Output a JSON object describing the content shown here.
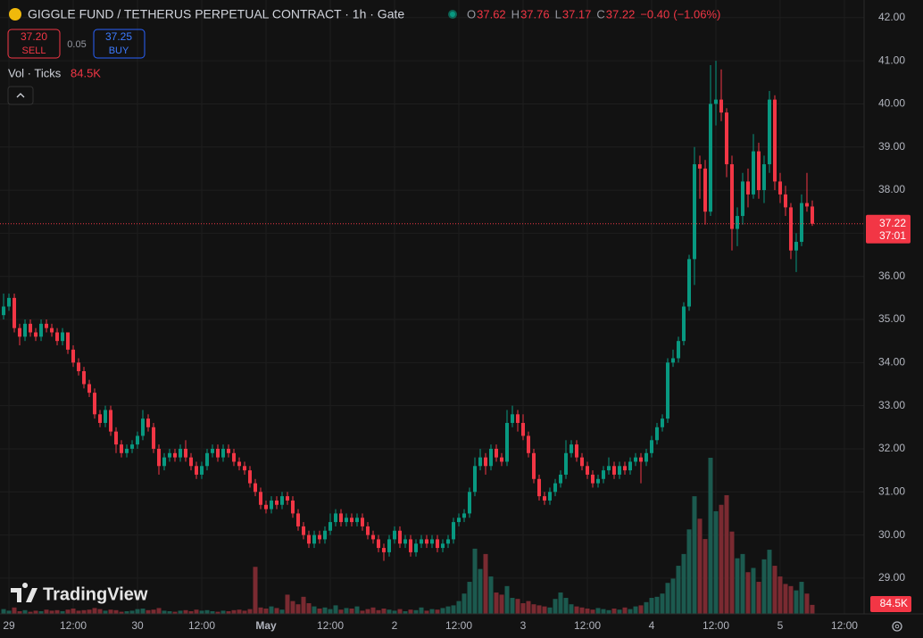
{
  "chart_data": {
    "type": "candlestick",
    "title": "GIGGLE FUND / TETHERUS PERPETUAL CONTRACT · 1h · Gate",
    "legend": {
      "labels": [
        "O",
        "H",
        "L",
        "C"
      ],
      "values": [
        37.62,
        37.76,
        37.17,
        37.22
      ],
      "change": {
        "value": -0.4,
        "label": "−0.40"
      },
      "change_pct": {
        "value": -1.06,
        "label": "(−1.06%)"
      }
    },
    "sell": {
      "price": {
        "value": 37.2,
        "label": "37.20"
      },
      "label": "SELL"
    },
    "spread": 0.05,
    "buy": {
      "price": 37.25,
      "label": "BUY"
    },
    "last_price": 37.22,
    "countdown": "37:01",
    "watermark": "TradingView",
    "up_color": "#089981",
    "down_color": "#f23645",
    "volume_up_color": "#1c5a4f",
    "volume_down_color": "#7a2a31",
    "ylim": [
      28.17,
      42.41
    ],
    "yticks": [
      {
        "value": 29,
        "label": "29.00"
      },
      {
        "value": 30,
        "label": "30.00"
      },
      {
        "value": 31,
        "label": "31.00"
      },
      {
        "value": 32,
        "label": "32.00"
      },
      {
        "value": 33,
        "label": "33.00"
      },
      {
        "value": 34,
        "label": "34.00"
      },
      {
        "value": 35,
        "label": "35.00"
      },
      {
        "value": 36,
        "label": "36.00"
      },
      {
        "value": 37,
        "label": "37.00"
      },
      {
        "value": 38,
        "label": "38.00"
      },
      {
        "value": 39,
        "label": "39.00"
      },
      {
        "value": 40,
        "label": "40.00"
      },
      {
        "value": 41,
        "label": "41.00"
      },
      {
        "value": 42,
        "label": "42.00"
      }
    ],
    "xlim": [
      -1.67,
      159.67
    ],
    "xticks": [
      {
        "value": 0,
        "label": "29"
      },
      {
        "value": 12,
        "label": "12:00"
      },
      {
        "value": 24,
        "label": "30"
      },
      {
        "value": 36,
        "label": "12:00"
      },
      {
        "value": 48,
        "label": "May"
      },
      {
        "value": 60,
        "label": "12:00"
      },
      {
        "value": 72,
        "label": "2"
      },
      {
        "value": 84,
        "label": "12:00"
      },
      {
        "value": 96,
        "label": "3"
      },
      {
        "value": 108,
        "label": "12:00"
      },
      {
        "value": 120,
        "label": "4"
      },
      {
        "value": 132,
        "label": "12:00"
      },
      {
        "value": 144,
        "label": "5"
      },
      {
        "value": 156,
        "label": "12:00"
      }
    ],
    "x": [
      -1,
      0,
      1,
      2,
      3,
      4,
      5,
      6,
      7,
      8,
      9,
      10,
      11,
      12,
      13,
      14,
      15,
      16,
      17,
      18,
      19,
      20,
      21,
      22,
      23,
      24,
      25,
      26,
      27,
      28,
      29,
      30,
      31,
      32,
      33,
      34,
      35,
      36,
      37,
      38,
      39,
      40,
      41,
      42,
      43,
      44,
      45,
      46,
      47,
      48,
      49,
      50,
      51,
      52,
      53,
      54,
      55,
      56,
      57,
      58,
      59,
      60,
      61,
      62,
      63,
      64,
      65,
      66,
      67,
      68,
      69,
      70,
      71,
      72,
      73,
      74,
      75,
      76,
      77,
      78,
      79,
      80,
      81,
      82,
      83,
      84,
      85,
      86,
      87,
      88,
      89,
      90,
      91,
      92,
      93,
      94,
      95,
      96,
      97,
      98,
      99,
      100,
      101,
      102,
      103,
      104,
      105,
      106,
      107,
      108,
      109,
      110,
      111,
      112,
      113,
      114,
      115,
      116,
      117,
      118,
      119,
      120,
      121,
      122,
      123,
      124,
      125,
      126,
      127,
      128,
      129,
      130,
      131,
      132,
      133,
      134,
      135,
      136,
      137,
      138,
      139,
      140,
      141,
      142,
      143,
      144,
      145,
      146,
      147,
      148,
      149,
      150
    ],
    "ohlc": [
      [
        35.1,
        35.6,
        35.0,
        35.3
      ],
      [
        35.3,
        35.6,
        35.2,
        35.5
      ],
      [
        35.5,
        35.6,
        34.7,
        34.8
      ],
      [
        34.8,
        34.9,
        34.4,
        34.6
      ],
      [
        34.6,
        35.0,
        34.5,
        34.9
      ],
      [
        34.9,
        35.0,
        34.6,
        34.7
      ],
      [
        34.7,
        34.8,
        34.5,
        34.6
      ],
      [
        34.6,
        35.0,
        34.5,
        34.9
      ],
      [
        34.9,
        35.0,
        34.7,
        34.8
      ],
      [
        34.8,
        34.9,
        34.6,
        34.7
      ],
      [
        34.7,
        34.8,
        34.4,
        34.5
      ],
      [
        34.5,
        34.8,
        34.4,
        34.7
      ],
      [
        34.7,
        34.7,
        34.2,
        34.3
      ],
      [
        34.3,
        34.4,
        33.9,
        34.0
      ],
      [
        34.0,
        34.1,
        33.7,
        33.8
      ],
      [
        33.8,
        33.9,
        33.4,
        33.5
      ],
      [
        33.5,
        33.6,
        33.2,
        33.3
      ],
      [
        33.3,
        33.4,
        32.7,
        32.8
      ],
      [
        32.8,
        32.9,
        32.5,
        32.6
      ],
      [
        32.6,
        33.0,
        32.5,
        32.9
      ],
      [
        32.9,
        33.0,
        32.3,
        32.4
      ],
      [
        32.4,
        32.5,
        31.9,
        32.1
      ],
      [
        32.1,
        32.2,
        31.8,
        31.9
      ],
      [
        31.9,
        32.1,
        31.8,
        32.0
      ],
      [
        32.0,
        32.2,
        31.9,
        32.1
      ],
      [
        32.1,
        32.4,
        32.0,
        32.3
      ],
      [
        32.3,
        32.9,
        32.2,
        32.7
      ],
      [
        32.7,
        32.8,
        32.4,
        32.5
      ],
      [
        32.5,
        32.6,
        31.9,
        32.0
      ],
      [
        32.0,
        32.1,
        31.4,
        31.6
      ],
      [
        31.6,
        31.9,
        31.5,
        31.8
      ],
      [
        31.8,
        32.0,
        31.7,
        31.9
      ],
      [
        31.9,
        32.0,
        31.7,
        31.8
      ],
      [
        31.8,
        32.1,
        31.7,
        32.0
      ],
      [
        32.0,
        32.2,
        31.7,
        31.8
      ],
      [
        31.8,
        31.9,
        31.5,
        31.6
      ],
      [
        31.6,
        31.7,
        31.3,
        31.4
      ],
      [
        31.4,
        31.7,
        31.3,
        31.6
      ],
      [
        31.6,
        32.0,
        31.5,
        31.9
      ],
      [
        31.9,
        32.1,
        31.8,
        32.0
      ],
      [
        32.0,
        32.1,
        31.7,
        31.8
      ],
      [
        31.8,
        32.1,
        31.7,
        32.0
      ],
      [
        32.0,
        32.1,
        31.8,
        31.9
      ],
      [
        31.9,
        32.0,
        31.6,
        31.7
      ],
      [
        31.7,
        31.8,
        31.5,
        31.6
      ],
      [
        31.6,
        31.7,
        31.4,
        31.5
      ],
      [
        31.5,
        31.6,
        31.1,
        31.2
      ],
      [
        31.2,
        31.3,
        30.9,
        31.0
      ],
      [
        31.0,
        31.1,
        30.6,
        30.7
      ],
      [
        30.7,
        30.8,
        30.5,
        30.6
      ],
      [
        30.6,
        30.9,
        30.5,
        30.8
      ],
      [
        30.8,
        30.9,
        30.6,
        30.7
      ],
      [
        30.7,
        31.0,
        30.6,
        30.9
      ],
      [
        30.9,
        31.0,
        30.7,
        30.8
      ],
      [
        30.8,
        30.9,
        30.4,
        30.5
      ],
      [
        30.5,
        30.6,
        30.1,
        30.2
      ],
      [
        30.2,
        30.3,
        29.9,
        30.0
      ],
      [
        30.0,
        30.1,
        29.7,
        29.8
      ],
      [
        29.8,
        30.1,
        29.7,
        30.0
      ],
      [
        30.0,
        30.1,
        29.8,
        29.9
      ],
      [
        29.9,
        30.2,
        29.8,
        30.1
      ],
      [
        30.1,
        30.5,
        30.0,
        30.3
      ],
      [
        30.3,
        30.6,
        30.2,
        30.5
      ],
      [
        30.5,
        30.6,
        30.2,
        30.3
      ],
      [
        30.3,
        30.5,
        30.2,
        30.4
      ],
      [
        30.4,
        30.5,
        30.2,
        30.3
      ],
      [
        30.3,
        30.5,
        30.2,
        30.4
      ],
      [
        30.4,
        30.5,
        30.1,
        30.2
      ],
      [
        30.2,
        30.3,
        29.9,
        30.0
      ],
      [
        30.0,
        30.1,
        29.8,
        29.9
      ],
      [
        29.9,
        30.0,
        29.6,
        29.7
      ],
      [
        29.7,
        29.8,
        29.4,
        29.6
      ],
      [
        29.6,
        30.0,
        29.5,
        29.9
      ],
      [
        29.9,
        30.2,
        29.8,
        30.1
      ],
      [
        30.1,
        30.2,
        29.7,
        29.8
      ],
      [
        29.8,
        30.0,
        29.7,
        29.9
      ],
      [
        29.9,
        30.0,
        29.5,
        29.6
      ],
      [
        29.6,
        29.9,
        29.5,
        29.8
      ],
      [
        29.8,
        30.0,
        29.7,
        29.9
      ],
      [
        29.9,
        30.0,
        29.7,
        29.8
      ],
      [
        29.8,
        30.0,
        29.7,
        29.9
      ],
      [
        29.9,
        30.0,
        29.6,
        29.7
      ],
      [
        29.7,
        29.9,
        29.6,
        29.8
      ],
      [
        29.8,
        30.0,
        29.7,
        29.9
      ],
      [
        29.9,
        30.4,
        29.8,
        30.3
      ],
      [
        30.3,
        30.5,
        30.2,
        30.4
      ],
      [
        30.4,
        30.6,
        30.3,
        30.5
      ],
      [
        30.5,
        31.1,
        30.4,
        31.0
      ],
      [
        31.0,
        31.8,
        30.9,
        31.6
      ],
      [
        31.6,
        32.0,
        31.5,
        31.8
      ],
      [
        31.8,
        31.9,
        31.4,
        31.6
      ],
      [
        31.6,
        32.1,
        31.5,
        32.0
      ],
      [
        32.0,
        32.1,
        31.7,
        31.8
      ],
      [
        31.8,
        31.9,
        31.6,
        31.7
      ],
      [
        31.7,
        32.9,
        31.6,
        32.6
      ],
      [
        32.6,
        33.0,
        32.5,
        32.8
      ],
      [
        32.8,
        32.9,
        32.4,
        32.6
      ],
      [
        32.6,
        32.8,
        32.2,
        32.3
      ],
      [
        32.3,
        32.4,
        31.8,
        31.9
      ],
      [
        31.9,
        32.0,
        31.2,
        31.3
      ],
      [
        31.3,
        31.4,
        30.8,
        30.9
      ],
      [
        30.9,
        31.0,
        30.7,
        30.8
      ],
      [
        30.8,
        31.1,
        30.7,
        31.0
      ],
      [
        31.0,
        31.3,
        30.9,
        31.2
      ],
      [
        31.2,
        31.5,
        31.1,
        31.4
      ],
      [
        31.4,
        32.2,
        31.3,
        31.9
      ],
      [
        31.9,
        32.2,
        31.8,
        32.1
      ],
      [
        32.1,
        32.2,
        31.7,
        31.8
      ],
      [
        31.8,
        31.9,
        31.5,
        31.6
      ],
      [
        31.6,
        31.7,
        31.3,
        31.4
      ],
      [
        31.4,
        31.5,
        31.1,
        31.2
      ],
      [
        31.2,
        31.4,
        31.1,
        31.3
      ],
      [
        31.3,
        31.6,
        31.2,
        31.5
      ],
      [
        31.5,
        31.8,
        31.4,
        31.6
      ],
      [
        31.6,
        31.7,
        31.3,
        31.4
      ],
      [
        31.4,
        31.7,
        31.3,
        31.6
      ],
      [
        31.6,
        31.7,
        31.4,
        31.5
      ],
      [
        31.5,
        31.8,
        31.4,
        31.7
      ],
      [
        31.7,
        31.9,
        31.6,
        31.8
      ],
      [
        31.8,
        31.9,
        31.2,
        31.7
      ],
      [
        31.7,
        32.0,
        31.6,
        31.9
      ],
      [
        31.9,
        32.3,
        31.8,
        32.2
      ],
      [
        32.2,
        32.6,
        32.1,
        32.5
      ],
      [
        32.5,
        32.8,
        32.4,
        32.7
      ],
      [
        32.7,
        34.1,
        32.6,
        34.0
      ],
      [
        34.0,
        34.3,
        33.9,
        34.1
      ],
      [
        34.1,
        34.6,
        34.0,
        34.5
      ],
      [
        34.5,
        35.4,
        34.4,
        35.3
      ],
      [
        35.3,
        36.5,
        35.2,
        36.4
      ],
      [
        36.4,
        39.0,
        35.8,
        38.6
      ],
      [
        38.6,
        38.8,
        37.8,
        38.5
      ],
      [
        38.5,
        38.7,
        37.2,
        37.5
      ],
      [
        37.5,
        40.9,
        37.4,
        40.0
      ],
      [
        40.0,
        41.0,
        39.5,
        40.1
      ],
      [
        40.1,
        40.8,
        39.6,
        39.8
      ],
      [
        39.8,
        39.9,
        38.3,
        38.6
      ],
      [
        38.6,
        38.8,
        36.6,
        37.1
      ],
      [
        37.1,
        37.6,
        36.7,
        37.4
      ],
      [
        37.4,
        38.4,
        37.2,
        38.2
      ],
      [
        38.2,
        38.5,
        37.6,
        37.9
      ],
      [
        37.9,
        39.3,
        37.8,
        38.9
      ],
      [
        38.9,
        39.1,
        37.8,
        38.0
      ],
      [
        38.0,
        38.8,
        37.7,
        38.6
      ],
      [
        38.6,
        40.3,
        38.4,
        40.1
      ],
      [
        40.1,
        40.2,
        38.0,
        38.2
      ],
      [
        38.2,
        38.4,
        37.7,
        37.9
      ],
      [
        37.9,
        38.1,
        37.4,
        37.6
      ],
      [
        37.6,
        37.7,
        36.4,
        36.6
      ],
      [
        36.6,
        37.0,
        36.1,
        36.8
      ],
      [
        36.8,
        37.9,
        36.7,
        37.7
      ],
      [
        37.7,
        38.4,
        37.5,
        37.62
      ],
      [
        37.62,
        37.76,
        37.17,
        37.22
      ]
    ],
    "volume": {
      "title": "Vol · Ticks",
      "last_label": "84.5K",
      "values": [
        45000,
        30000,
        60000,
        25000,
        35000,
        20000,
        30000,
        25000,
        40000,
        30000,
        35000,
        25000,
        40000,
        50000,
        30000,
        35000,
        40000,
        55000,
        45000,
        30000,
        40000,
        35000,
        20000,
        25000,
        30000,
        45000,
        50000,
        35000,
        40000,
        55000,
        30000,
        25000,
        20000,
        30000,
        35000,
        25000,
        40000,
        30000,
        35000,
        25000,
        20000,
        30000,
        25000,
        35000,
        40000,
        30000,
        45000,
        440000,
        60000,
        50000,
        70000,
        55000,
        40000,
        180000,
        120000,
        90000,
        160000,
        100000,
        70000,
        50000,
        60000,
        45000,
        80000,
        40000,
        55000,
        50000,
        70000,
        30000,
        45000,
        60000,
        35000,
        50000,
        40000,
        30000,
        45000,
        25000,
        40000,
        35000,
        60000,
        30000,
        45000,
        40000,
        55000,
        70000,
        80000,
        120000,
        190000,
        300000,
        610000,
        420000,
        560000,
        350000,
        200000,
        180000,
        260000,
        150000,
        140000,
        100000,
        120000,
        90000,
        80000,
        70000,
        60000,
        140000,
        200000,
        150000,
        90000,
        70000,
        60000,
        50000,
        40000,
        55000,
        45000,
        35000,
        50000,
        40000,
        60000,
        45000,
        70000,
        80000,
        110000,
        150000,
        160000,
        190000,
        290000,
        330000,
        450000,
        560000,
        790000,
        1100000,
        890000,
        700000,
        1460000,
        960000,
        1020000,
        1110000,
        770000,
        520000,
        560000,
        390000,
        430000,
        300000,
        510000,
        600000,
        450000,
        350000,
        280000,
        260000,
        220000,
        300000,
        190000,
        84500
      ]
    }
  }
}
